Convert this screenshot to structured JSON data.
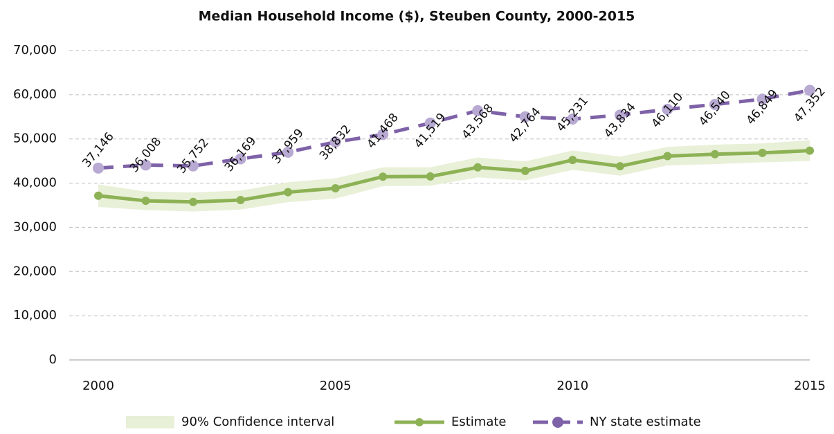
{
  "chart_data": {
    "type": "line",
    "title": "Median Household Income ($), Steuben County, 2000-2015",
    "x": [
      2000,
      2001,
      2002,
      2003,
      2004,
      2005,
      2006,
      2007,
      2008,
      2009,
      2010,
      2011,
      2012,
      2013,
      2014,
      2015
    ],
    "xlim": [
      2000,
      2015
    ],
    "xticks": [
      2000,
      2005,
      2010,
      2015
    ],
    "ylim": [
      0,
      70000
    ],
    "yticks": [
      0,
      {
        "value": 10000,
        "label": "10,000"
      },
      {
        "value": 20000,
        "label": "20,000"
      },
      {
        "value": 30000,
        "label": "30,000"
      },
      {
        "value": 40000,
        "label": "40,000"
      },
      {
        "value": 50000,
        "label": "50,000"
      },
      {
        "value": 60000,
        "label": "60,000"
      },
      {
        "value": 70000,
        "label": "70,000"
      }
    ],
    "grid": true,
    "legend": "bottom",
    "band": {
      "name": "90% Confidence interval",
      "color": "#e8f0d8",
      "lower": [
        34600,
        33900,
        33600,
        34000,
        35700,
        36500,
        39300,
        39400,
        41300,
        40600,
        43000,
        41700,
        44000,
        44300,
        44700,
        45000
      ],
      "upper": [
        39700,
        38100,
        37900,
        38300,
        40200,
        41100,
        43600,
        43600,
        45800,
        44900,
        47400,
        46000,
        48200,
        48700,
        49000,
        49700
      ]
    },
    "series": [
      {
        "name": "Estimate",
        "color": "#8db255",
        "values": [
          37146,
          36008,
          35752,
          36169,
          37959,
          38832,
          41468,
          41519,
          43568,
          42764,
          45231,
          43834,
          46110,
          46540,
          46849,
          47352
        ],
        "value_labels": [
          "37,146",
          "36,008",
          "35,752",
          "36,169",
          "37,959",
          "38,832",
          "41,468",
          "41,519",
          "43,568",
          "42,764",
          "45,231",
          "43,834",
          "46,110",
          "46,540",
          "46,849",
          "47,352"
        ]
      },
      {
        "name": "NY state estimate",
        "color": "#7e62a8",
        "marker_color": "#b8aad3",
        "dashed": true,
        "values": [
          43400,
          44100,
          43900,
          45500,
          47000,
          49300,
          51000,
          53600,
          56400,
          55000,
          54500,
          55400,
          56700,
          57800,
          59000,
          61000
        ]
      }
    ]
  }
}
